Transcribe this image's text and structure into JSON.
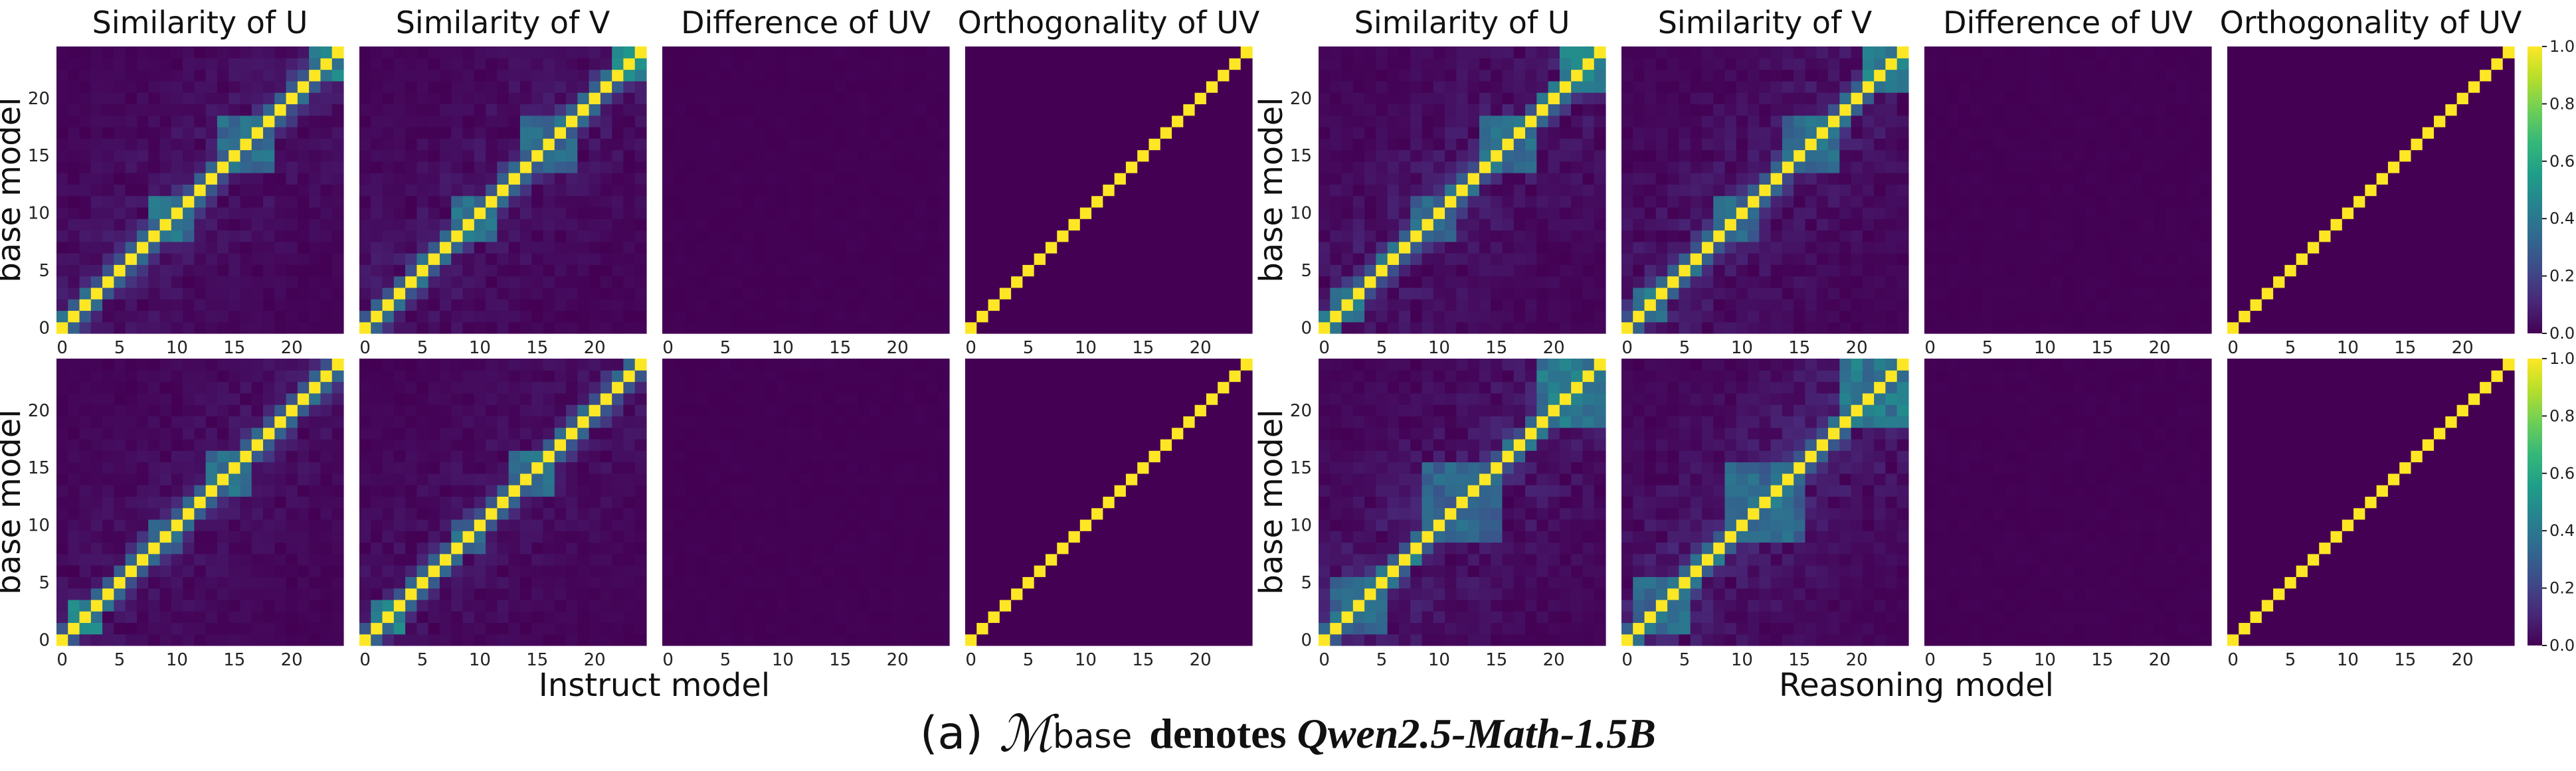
{
  "chart_data": {
    "type": "heatmap",
    "matrix_size": 25,
    "colormap": "viridis",
    "value_range": [
      0.0,
      1.0
    ],
    "colorbar_ticks": [
      "0.0",
      "0.2",
      "0.4",
      "0.6",
      "0.8",
      "1.0"
    ],
    "x_ticks": [
      0,
      5,
      10,
      15,
      20
    ],
    "y_ticks": [
      0,
      5,
      10,
      15,
      20
    ],
    "panel_titles": [
      "Similarity of U",
      "Similarity of V",
      "Difference of UV",
      "Orthogonality of UV"
    ],
    "y_axis_label": "base model",
    "groups": [
      {
        "xlabel": "Instruct model",
        "rows": [
          [
            {
              "kind": "similarity",
              "blocks": [
                [
                  8,
                  11,
                  0.45
                ],
                [
                  14,
                  18,
                  0.42
                ],
                [
                  22,
                  24,
                  0.55
                ]
              ],
              "noise": 0.12
            },
            {
              "kind": "similarity",
              "blocks": [
                [
                  8,
                  11,
                  0.45
                ],
                [
                  14,
                  18,
                  0.42
                ],
                [
                  22,
                  24,
                  0.55
                ]
              ],
              "noise": 0.12
            },
            {
              "kind": "zero"
            },
            {
              "kind": "identity"
            }
          ],
          [
            {
              "kind": "similarity",
              "blocks": [
                [
                  1,
                  3,
                  0.5
                ],
                [
                  8,
                  10,
                  0.4
                ],
                [
                  13,
                  16,
                  0.42
                ]
              ],
              "noise": 0.1
            },
            {
              "kind": "similarity",
              "blocks": [
                [
                  1,
                  3,
                  0.5
                ],
                [
                  8,
                  10,
                  0.4
                ],
                [
                  13,
                  16,
                  0.42
                ]
              ],
              "noise": 0.1
            },
            {
              "kind": "zero"
            },
            {
              "kind": "identity"
            }
          ]
        ]
      },
      {
        "xlabel": "Reasoning model",
        "rows": [
          [
            {
              "kind": "similarity",
              "blocks": [
                [
                  1,
                  3,
                  0.45
                ],
                [
                  8,
                  11,
                  0.4
                ],
                [
                  14,
                  18,
                  0.42
                ],
                [
                  21,
                  24,
                  0.5
                ]
              ],
              "noise": 0.14
            },
            {
              "kind": "similarity",
              "blocks": [
                [
                  1,
                  3,
                  0.45
                ],
                [
                  8,
                  11,
                  0.4
                ],
                [
                  14,
                  18,
                  0.42
                ],
                [
                  21,
                  24,
                  0.5
                ]
              ],
              "noise": 0.14
            },
            {
              "kind": "zero"
            },
            {
              "kind": "identity"
            }
          ],
          [
            {
              "kind": "similarity",
              "blocks": [
                [
                  1,
                  5,
                  0.42
                ],
                [
                  9,
                  15,
                  0.4
                ],
                [
                  19,
                  24,
                  0.48
                ]
              ],
              "noise": 0.16
            },
            {
              "kind": "similarity",
              "blocks": [
                [
                  1,
                  5,
                  0.42
                ],
                [
                  9,
                  15,
                  0.4
                ],
                [
                  19,
                  24,
                  0.48
                ]
              ],
              "noise": 0.16
            },
            {
              "kind": "zero"
            },
            {
              "kind": "identity"
            }
          ]
        ]
      }
    ]
  },
  "caption": {
    "label": "(a)",
    "symbol": "ℳ",
    "subscript": "base",
    "text": "denotes",
    "model": "Qwen2.5-Math-1.5B"
  }
}
